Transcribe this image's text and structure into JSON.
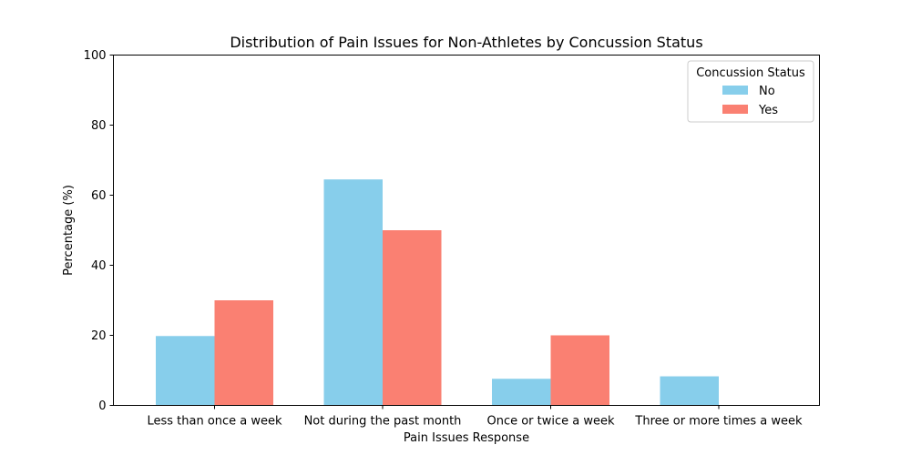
{
  "chart_data": {
    "type": "bar",
    "title": "Distribution of Pain Issues for Non-Athletes by Concussion Status",
    "xlabel": "Pain Issues Response",
    "ylabel": "Percentage (%)",
    "categories": [
      "Less than once a week",
      "Not during the past month",
      "Once or twice a week",
      "Three or more times a week"
    ],
    "series": [
      {
        "name": "No",
        "color": "#87CEEB",
        "values": [
          19.8,
          64.5,
          7.6,
          8.3
        ]
      },
      {
        "name": "Yes",
        "color": "#FA8072",
        "values": [
          30,
          50,
          20,
          0
        ]
      }
    ],
    "ylim": [
      0,
      100
    ],
    "yticks": [
      0,
      20,
      40,
      60,
      80,
      100
    ],
    "grid": false,
    "legend": {
      "title": "Concussion Status",
      "position": "top-right"
    }
  }
}
